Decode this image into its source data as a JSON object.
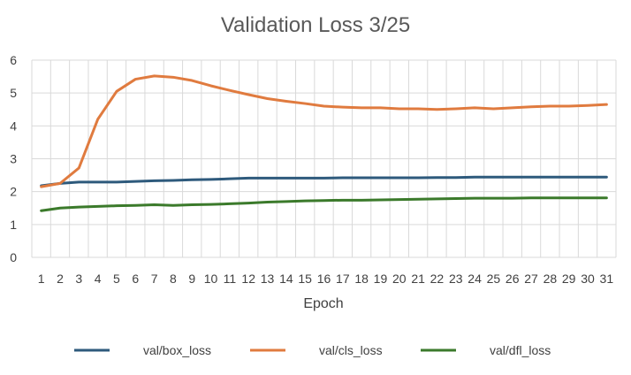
{
  "chart_data": {
    "type": "line",
    "title": "Validation Loss 3/25",
    "xlabel": "Epoch",
    "ylabel": "",
    "ylim": [
      0,
      6
    ],
    "yticks": [
      0,
      1,
      2,
      3,
      4,
      5,
      6
    ],
    "grid": true,
    "legend_position": "bottom",
    "x": [
      1,
      2,
      3,
      4,
      5,
      6,
      7,
      8,
      9,
      10,
      11,
      12,
      13,
      14,
      15,
      16,
      17,
      18,
      19,
      20,
      21,
      22,
      23,
      24,
      25,
      26,
      27,
      28,
      29,
      30,
      31
    ],
    "series": [
      {
        "name": "val/box_loss",
        "color": "#2e5a7c",
        "values": [
          2.18,
          2.25,
          2.29,
          2.29,
          2.29,
          2.31,
          2.33,
          2.34,
          2.36,
          2.37,
          2.39,
          2.41,
          2.41,
          2.41,
          2.41,
          2.41,
          2.42,
          2.42,
          2.42,
          2.42,
          2.42,
          2.43,
          2.43,
          2.44,
          2.44,
          2.44,
          2.44,
          2.44,
          2.44,
          2.44,
          2.44
        ]
      },
      {
        "name": "val/cls_loss",
        "color": "#e07b3f",
        "values": [
          2.15,
          2.25,
          2.72,
          4.2,
          5.05,
          5.42,
          5.52,
          5.48,
          5.38,
          5.22,
          5.08,
          4.95,
          4.83,
          4.75,
          4.68,
          4.6,
          4.57,
          4.55,
          4.55,
          4.52,
          4.52,
          4.5,
          4.52,
          4.55,
          4.52,
          4.55,
          4.58,
          4.6,
          4.6,
          4.62,
          4.65
        ]
      },
      {
        "name": "val/dfl_loss",
        "color": "#3b7a2b",
        "values": [
          1.42,
          1.5,
          1.53,
          1.55,
          1.57,
          1.58,
          1.6,
          1.58,
          1.6,
          1.61,
          1.63,
          1.65,
          1.68,
          1.7,
          1.72,
          1.73,
          1.74,
          1.74,
          1.75,
          1.76,
          1.77,
          1.78,
          1.79,
          1.8,
          1.8,
          1.8,
          1.81,
          1.81,
          1.81,
          1.81,
          1.81
        ]
      }
    ]
  }
}
